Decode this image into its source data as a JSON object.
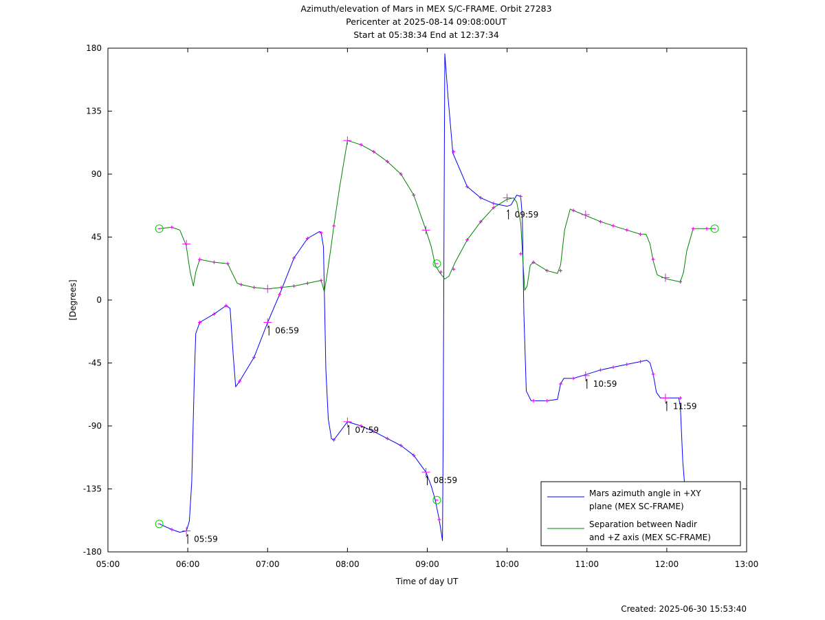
{
  "chart_data": {
    "type": "line",
    "title": [
      "Azimuth/elevation of Mars in MEX S/C-FRAME.  Orbit 27283",
      "Pericenter at 2025-08-14 09:08:00UT",
      "Start at 05:38:34 End at 12:37:34"
    ],
    "xlabel": "Time of day UT",
    "ylabel": "[Degrees]",
    "xlim": [
      5.0,
      13.0
    ],
    "ylim": [
      -180,
      180
    ],
    "xticks": [
      5,
      6,
      7,
      8,
      9,
      10,
      11,
      12,
      13
    ],
    "xtick_labels": [
      "05:00",
      "06:00",
      "07:00",
      "08:00",
      "09:00",
      "10:00",
      "11:00",
      "12:00",
      "13:00"
    ],
    "yticks": [
      180,
      135,
      90,
      45,
      0,
      -45,
      -90,
      -135,
      -180
    ],
    "ytick_labels": [
      "180",
      "135",
      "90",
      "45",
      "0",
      "-45",
      "-90",
      "-135",
      "-180"
    ],
    "grid": false,
    "legend_position": "bottom-right",
    "footer": "Created: 2025-06-30 15:53:40",
    "series": [
      {
        "name": "Mars azimuth angle in +XY plane (MEX SC-FRAME)",
        "legend_lines": [
          "Mars azimuth angle in +XY",
          "plane (MEX SC-FRAME)"
        ],
        "color": "#0000ff",
        "points": [
          [
            5.643,
            -160
          ],
          [
            5.8,
            -164
          ],
          [
            5.9,
            -166
          ],
          [
            5.983,
            -165
          ],
          [
            6.02,
            -158
          ],
          [
            6.05,
            -130
          ],
          [
            6.08,
            -60
          ],
          [
            6.1,
            -24
          ],
          [
            6.15,
            -16
          ],
          [
            6.33,
            -10
          ],
          [
            6.48,
            -4
          ],
          [
            6.53,
            -6
          ],
          [
            6.57,
            -40
          ],
          [
            6.6,
            -62
          ],
          [
            6.65,
            -58
          ],
          [
            6.83,
            -41
          ],
          [
            7.0,
            -16
          ],
          [
            7.15,
            4
          ],
          [
            7.33,
            30
          ],
          [
            7.5,
            44
          ],
          [
            7.65,
            49
          ],
          [
            7.67,
            48
          ],
          [
            7.7,
            38
          ],
          [
            7.73,
            -50
          ],
          [
            7.76,
            -85
          ],
          [
            7.8,
            -99
          ],
          [
            7.83,
            -100
          ],
          [
            8.0,
            -87
          ],
          [
            8.17,
            -90
          ],
          [
            8.33,
            -94
          ],
          [
            8.5,
            -99
          ],
          [
            8.67,
            -104
          ],
          [
            8.83,
            -111
          ],
          [
            8.983,
            -123
          ],
          [
            9.05,
            -133
          ],
          [
            9.1,
            -143
          ],
          [
            9.15,
            -157
          ],
          [
            9.19,
            -172
          ],
          [
            9.2,
            -90
          ],
          [
            9.21,
            60
          ],
          [
            9.22,
            176
          ],
          [
            9.26,
            145
          ],
          [
            9.32,
            105
          ],
          [
            9.5,
            81
          ],
          [
            9.67,
            73
          ],
          [
            9.83,
            69
          ],
          [
            10.0,
            67
          ],
          [
            10.05,
            68
          ],
          [
            10.12,
            75
          ],
          [
            10.17,
            74
          ],
          [
            10.19,
            60
          ],
          [
            10.21,
            -10
          ],
          [
            10.24,
            -65
          ],
          [
            10.3,
            -72
          ],
          [
            10.5,
            -72
          ],
          [
            10.63,
            -71
          ],
          [
            10.67,
            -60
          ],
          [
            10.71,
            -56
          ],
          [
            10.83,
            -56
          ],
          [
            11.0,
            -53
          ],
          [
            11.17,
            -50
          ],
          [
            11.33,
            -48
          ],
          [
            11.5,
            -46
          ],
          [
            11.67,
            -44
          ],
          [
            11.75,
            -43
          ],
          [
            11.79,
            -45
          ],
          [
            11.83,
            -53
          ],
          [
            11.87,
            -66
          ],
          [
            11.92,
            -70
          ],
          [
            12.0,
            -70
          ],
          [
            12.12,
            -70
          ],
          [
            12.15,
            -70
          ],
          [
            12.17,
            -76
          ],
          [
            12.2,
            -115
          ],
          [
            12.23,
            -137
          ]
        ],
        "markers": [
          [
            5.8,
            -164
          ],
          [
            6.15,
            -16
          ],
          [
            6.33,
            -10
          ],
          [
            6.48,
            -4
          ],
          [
            6.65,
            -58
          ],
          [
            6.83,
            -41
          ],
          [
            7.15,
            4
          ],
          [
            7.33,
            30
          ],
          [
            7.5,
            44
          ],
          [
            7.67,
            48
          ],
          [
            7.83,
            -100
          ],
          [
            8.17,
            -90
          ],
          [
            8.33,
            -94
          ],
          [
            8.5,
            -99
          ],
          [
            8.67,
            -104
          ],
          [
            8.83,
            -111
          ],
          [
            9.15,
            -157
          ],
          [
            9.33,
            106
          ],
          [
            9.5,
            81
          ],
          [
            9.67,
            73
          ],
          [
            9.83,
            69
          ],
          [
            10.17,
            74
          ],
          [
            10.33,
            -72
          ],
          [
            10.5,
            -72
          ],
          [
            10.67,
            -60
          ],
          [
            10.83,
            -56
          ],
          [
            11.17,
            -50
          ],
          [
            11.33,
            -48
          ],
          [
            11.5,
            -46
          ],
          [
            11.67,
            -44
          ],
          [
            11.83,
            -53
          ],
          [
            12.17,
            -70
          ]
        ],
        "hour_crosses": [
          [
            5.983,
            -165
          ],
          [
            7.0,
            -16
          ],
          [
            8.0,
            -87
          ],
          [
            8.983,
            -123
          ],
          [
            10.983,
            -54
          ],
          [
            11.983,
            -70
          ]
        ],
        "circles": [
          [
            5.643,
            -160
          ],
          [
            9.12,
            -143
          ]
        ],
        "time_annotations": [
          {
            "t": 5.983,
            "v": -165,
            "label": "05:59"
          },
          {
            "t": 7.0,
            "v": -16,
            "label": "06:59"
          },
          {
            "t": 8.0,
            "v": -87,
            "label": "07:59"
          },
          {
            "t": 8.983,
            "v": -123,
            "label": "08:59"
          },
          {
            "t": 10.983,
            "v": -54,
            "label": "10:59"
          },
          {
            "t": 11.983,
            "v": -70,
            "label": "11:59"
          }
        ]
      },
      {
        "name": "Separation between Nadir and +Z axis (MEX SC-FRAME)",
        "legend_lines": [
          "Separation between Nadir",
          "and +Z axis (MEX SC-FRAME)"
        ],
        "color": "#008000",
        "points": [
          [
            5.643,
            51
          ],
          [
            5.8,
            52
          ],
          [
            5.9,
            50
          ],
          [
            5.98,
            39
          ],
          [
            6.03,
            20
          ],
          [
            6.07,
            10
          ],
          [
            6.1,
            20
          ],
          [
            6.15,
            29
          ],
          [
            6.33,
            27
          ],
          [
            6.5,
            26
          ],
          [
            6.55,
            20
          ],
          [
            6.62,
            12
          ],
          [
            6.67,
            11
          ],
          [
            6.83,
            9
          ],
          [
            7.0,
            8
          ],
          [
            7.17,
            9
          ],
          [
            7.33,
            10
          ],
          [
            7.5,
            12
          ],
          [
            7.67,
            14
          ],
          [
            7.71,
            6
          ],
          [
            7.75,
            20
          ],
          [
            7.8,
            40
          ],
          [
            7.83,
            53
          ],
          [
            7.9,
            80
          ],
          [
            8.0,
            114
          ],
          [
            8.17,
            111
          ],
          [
            8.33,
            106
          ],
          [
            8.5,
            99
          ],
          [
            8.67,
            90
          ],
          [
            8.83,
            75
          ],
          [
            8.983,
            50
          ],
          [
            9.05,
            38
          ],
          [
            9.1,
            25
          ],
          [
            9.15,
            20
          ],
          [
            9.22,
            15
          ],
          [
            9.27,
            17
          ],
          [
            9.35,
            27
          ],
          [
            9.5,
            43
          ],
          [
            9.67,
            56
          ],
          [
            9.83,
            66
          ],
          [
            10.0,
            72
          ],
          [
            10.08,
            73
          ],
          [
            10.12,
            70
          ],
          [
            10.17,
            55
          ],
          [
            10.22,
            7
          ],
          [
            10.25,
            10
          ],
          [
            10.29,
            25
          ],
          [
            10.33,
            27
          ],
          [
            10.5,
            21
          ],
          [
            10.63,
            19
          ],
          [
            10.67,
            25
          ],
          [
            10.72,
            50
          ],
          [
            10.79,
            65
          ],
          [
            10.83,
            64
          ],
          [
            11.0,
            60
          ],
          [
            11.17,
            56
          ],
          [
            11.33,
            53
          ],
          [
            11.5,
            50
          ],
          [
            11.67,
            47
          ],
          [
            11.74,
            47
          ],
          [
            11.79,
            40
          ],
          [
            11.83,
            28
          ],
          [
            11.88,
            18
          ],
          [
            12.0,
            15
          ],
          [
            12.17,
            13
          ],
          [
            12.21,
            20
          ],
          [
            12.25,
            35
          ],
          [
            12.33,
            51
          ],
          [
            12.5,
            51
          ],
          [
            12.6,
            51
          ]
        ],
        "markers": [
          [
            5.8,
            52
          ],
          [
            6.15,
            29
          ],
          [
            6.33,
            27
          ],
          [
            6.5,
            26
          ],
          [
            6.67,
            11
          ],
          [
            6.83,
            9
          ],
          [
            7.17,
            9
          ],
          [
            7.33,
            10
          ],
          [
            7.5,
            12
          ],
          [
            7.67,
            14
          ],
          [
            7.83,
            53
          ],
          [
            8.17,
            111
          ],
          [
            8.33,
            106
          ],
          [
            8.5,
            99
          ],
          [
            8.67,
            90
          ],
          [
            8.83,
            75
          ],
          [
            9.17,
            20
          ],
          [
            9.33,
            22
          ],
          [
            9.5,
            43
          ],
          [
            9.67,
            56
          ],
          [
            9.83,
            66
          ],
          [
            10.17,
            33
          ],
          [
            10.33,
            27
          ],
          [
            10.5,
            21
          ],
          [
            10.67,
            21
          ],
          [
            10.83,
            64
          ],
          [
            11.17,
            56
          ],
          [
            11.33,
            53
          ],
          [
            11.5,
            50
          ],
          [
            11.67,
            47
          ],
          [
            11.83,
            29
          ],
          [
            12.17,
            13
          ],
          [
            12.33,
            51
          ],
          [
            12.5,
            51
          ]
        ],
        "hour_crosses": [
          [
            5.983,
            40
          ],
          [
            7.0,
            8
          ],
          [
            8.0,
            114
          ],
          [
            8.983,
            50
          ],
          [
            10.0,
            73
          ],
          [
            10.983,
            61
          ],
          [
            11.983,
            16
          ]
        ],
        "circles": [
          [
            5.643,
            51
          ],
          [
            9.12,
            26
          ],
          [
            12.6,
            51
          ]
        ],
        "time_annotations": [
          {
            "t": 10.0,
            "v": 67,
            "label": "09:59"
          }
        ]
      }
    ]
  }
}
